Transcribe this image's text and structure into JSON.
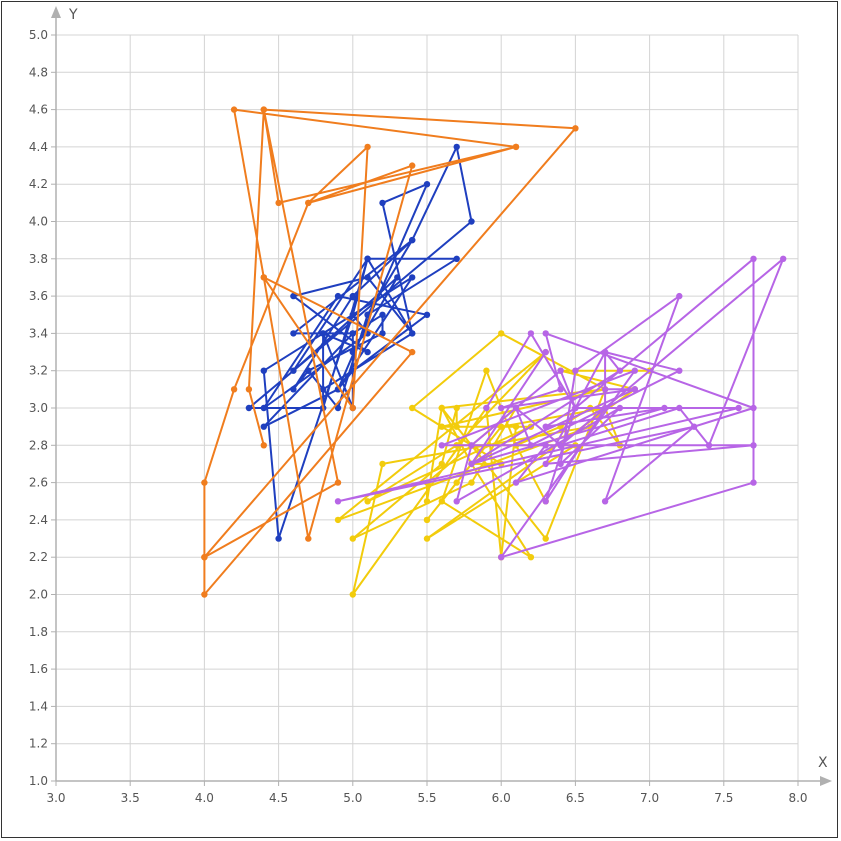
{
  "chart_data": {
    "type": "line",
    "title": "",
    "xlabel": "X",
    "ylabel": "Y",
    "xlim": [
      3.0,
      8.0
    ],
    "ylim": [
      1.0,
      5.0
    ],
    "xticks": [
      "3.0",
      "3.5",
      "4.0",
      "4.5",
      "5.0",
      "5.5",
      "6.0",
      "6.5",
      "7.0",
      "7.5",
      "8.0"
    ],
    "yticks": [
      "1.0",
      "1.2",
      "1.4",
      "1.6",
      "1.8",
      "2.0",
      "2.2",
      "2.4",
      "2.6",
      "2.8",
      "3.0",
      "3.2",
      "3.4",
      "3.6",
      "3.8",
      "4.0",
      "4.2",
      "4.4",
      "4.6",
      "4.8",
      "5.0"
    ],
    "grid": true,
    "series": [
      {
        "color": "#1f3fbf",
        "points": [
          [
            5.1,
            3.5
          ],
          [
            4.9,
            3.0
          ],
          [
            4.7,
            3.2
          ],
          [
            4.6,
            3.1
          ],
          [
            5.0,
            3.6
          ],
          [
            5.4,
            3.9
          ],
          [
            4.6,
            3.4
          ],
          [
            5.0,
            3.4
          ],
          [
            4.4,
            2.9
          ],
          [
            4.9,
            3.1
          ],
          [
            5.4,
            3.7
          ],
          [
            4.8,
            3.4
          ],
          [
            4.8,
            3.0
          ],
          [
            4.3,
            3.0
          ],
          [
            5.8,
            4.0
          ],
          [
            5.7,
            4.4
          ],
          [
            5.4,
            3.9
          ],
          [
            5.1,
            3.5
          ],
          [
            5.7,
            3.8
          ],
          [
            5.1,
            3.8
          ],
          [
            5.4,
            3.4
          ],
          [
            5.1,
            3.7
          ],
          [
            4.6,
            3.6
          ],
          [
            5.1,
            3.3
          ],
          [
            4.8,
            3.4
          ],
          [
            5.0,
            3.0
          ],
          [
            5.0,
            3.4
          ],
          [
            5.2,
            3.5
          ],
          [
            5.2,
            3.4
          ],
          [
            4.7,
            3.2
          ],
          [
            4.8,
            3.1
          ],
          [
            5.4,
            3.4
          ],
          [
            5.2,
            4.1
          ],
          [
            5.5,
            4.2
          ],
          [
            4.9,
            3.1
          ],
          [
            5.0,
            3.2
          ],
          [
            5.5,
            3.5
          ],
          [
            4.9,
            3.6
          ],
          [
            4.4,
            3.0
          ],
          [
            5.1,
            3.4
          ],
          [
            5.0,
            3.5
          ],
          [
            4.5,
            2.3
          ],
          [
            4.4,
            3.2
          ],
          [
            5.0,
            3.5
          ],
          [
            5.1,
            3.8
          ],
          [
            4.8,
            3.0
          ],
          [
            5.1,
            3.8
          ],
          [
            4.6,
            3.2
          ],
          [
            5.3,
            3.7
          ],
          [
            5.0,
            3.3
          ]
        ]
      },
      {
        "color": "#f07d1e",
        "points": [
          [
            4.4,
            2.8
          ],
          [
            4.3,
            3.1
          ],
          [
            4.4,
            4.6
          ],
          [
            4.5,
            4.1
          ],
          [
            6.1,
            4.4
          ],
          [
            4.2,
            4.6
          ],
          [
            4.4,
            3.7
          ],
          [
            5.4,
            3.3
          ],
          [
            4.0,
            2.0
          ],
          [
            4.0,
            2.2
          ],
          [
            6.5,
            4.5
          ],
          [
            4.4,
            4.6
          ],
          [
            4.9,
            2.6
          ],
          [
            4.0,
            2.2
          ],
          [
            4.0,
            2.6
          ],
          [
            4.2,
            3.1
          ],
          [
            4.7,
            4.1
          ],
          [
            5.1,
            4.4
          ],
          [
            5.0,
            3.0
          ],
          [
            4.4,
            3.7
          ],
          [
            4.7,
            2.3
          ],
          [
            5.4,
            4.3
          ],
          [
            4.7,
            4.1
          ],
          [
            6.1,
            4.4
          ]
        ]
      },
      {
        "color": "#f2cc0c",
        "points": [
          [
            7.0,
            3.2
          ],
          [
            6.4,
            3.2
          ],
          [
            6.9,
            3.1
          ],
          [
            5.5,
            2.3
          ],
          [
            6.5,
            2.8
          ],
          [
            5.7,
            2.8
          ],
          [
            6.3,
            3.3
          ],
          [
            4.9,
            2.4
          ],
          [
            6.6,
            2.9
          ],
          [
            5.2,
            2.7
          ],
          [
            5.0,
            2.0
          ],
          [
            5.9,
            3.0
          ],
          [
            6.0,
            2.2
          ],
          [
            6.1,
            2.9
          ],
          [
            5.6,
            2.9
          ],
          [
            6.7,
            3.1
          ],
          [
            5.6,
            3.0
          ],
          [
            5.8,
            2.7
          ],
          [
            6.2,
            2.2
          ],
          [
            5.6,
            2.5
          ],
          [
            5.9,
            3.2
          ],
          [
            6.1,
            2.8
          ],
          [
            6.3,
            2.5
          ],
          [
            6.1,
            2.8
          ],
          [
            6.4,
            2.9
          ],
          [
            6.6,
            3.0
          ],
          [
            6.8,
            2.8
          ],
          [
            6.7,
            3.0
          ],
          [
            6.0,
            2.9
          ],
          [
            5.7,
            2.6
          ],
          [
            5.5,
            2.4
          ],
          [
            5.5,
            2.4
          ],
          [
            5.8,
            2.7
          ],
          [
            6.0,
            2.7
          ],
          [
            5.4,
            3.0
          ],
          [
            6.0,
            3.4
          ],
          [
            6.7,
            3.1
          ],
          [
            6.3,
            2.3
          ],
          [
            5.6,
            3.0
          ],
          [
            5.5,
            2.5
          ],
          [
            5.5,
            2.6
          ],
          [
            6.1,
            3.0
          ],
          [
            5.8,
            2.6
          ],
          [
            5.0,
            2.3
          ],
          [
            5.6,
            2.7
          ],
          [
            5.7,
            3.0
          ],
          [
            5.7,
            2.9
          ],
          [
            6.2,
            2.9
          ],
          [
            5.1,
            2.5
          ],
          [
            5.7,
            2.8
          ]
        ]
      },
      {
        "color": "#b765e6",
        "points": [
          [
            6.3,
            3.3
          ],
          [
            5.8,
            2.7
          ],
          [
            7.1,
            3.0
          ],
          [
            6.3,
            2.9
          ],
          [
            6.5,
            3.0
          ],
          [
            7.6,
            3.0
          ],
          [
            4.9,
            2.5
          ],
          [
            7.3,
            2.9
          ],
          [
            6.7,
            2.5
          ],
          [
            7.2,
            3.6
          ],
          [
            6.5,
            3.2
          ],
          [
            6.4,
            2.7
          ],
          [
            6.8,
            3.0
          ],
          [
            5.7,
            2.5
          ],
          [
            5.8,
            2.8
          ],
          [
            6.4,
            3.2
          ],
          [
            6.5,
            3.0
          ],
          [
            7.7,
            3.8
          ],
          [
            7.7,
            2.6
          ],
          [
            6.0,
            2.2
          ],
          [
            6.9,
            3.2
          ],
          [
            5.6,
            2.8
          ],
          [
            7.7,
            2.8
          ],
          [
            6.3,
            2.7
          ],
          [
            6.7,
            3.3
          ],
          [
            7.2,
            3.2
          ],
          [
            6.2,
            2.8
          ],
          [
            6.1,
            3.0
          ],
          [
            6.4,
            2.8
          ],
          [
            7.2,
            3.0
          ],
          [
            7.4,
            2.8
          ],
          [
            7.9,
            3.8
          ],
          [
            6.4,
            2.8
          ],
          [
            6.3,
            2.8
          ],
          [
            6.1,
            2.6
          ],
          [
            7.7,
            3.0
          ],
          [
            6.3,
            3.4
          ],
          [
            6.4,
            3.1
          ],
          [
            6.0,
            3.0
          ],
          [
            6.9,
            3.1
          ],
          [
            6.7,
            3.1
          ],
          [
            6.9,
            3.1
          ],
          [
            5.8,
            2.7
          ],
          [
            6.8,
            3.2
          ],
          [
            6.7,
            3.3
          ],
          [
            6.7,
            3.0
          ],
          [
            6.3,
            2.5
          ],
          [
            6.5,
            3.0
          ],
          [
            6.2,
            3.4
          ],
          [
            5.9,
            3.0
          ]
        ]
      }
    ]
  }
}
